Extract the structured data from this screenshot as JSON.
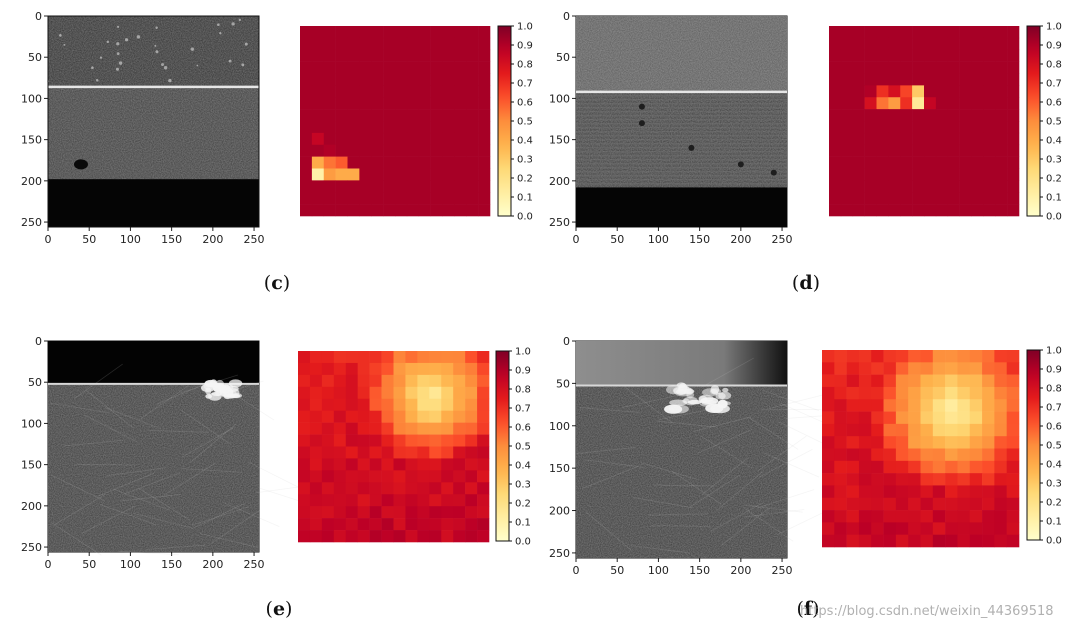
{
  "chart_data": [
    {
      "type": "heatmap",
      "panel": "c",
      "xticks": [
        "0",
        "50",
        "100",
        "150",
        "200",
        "250"
      ],
      "yticks": [
        "0",
        "50",
        "100",
        "150",
        "200",
        "250"
      ],
      "xlim": [
        0,
        256
      ],
      "ylim": [
        256,
        0
      ],
      "colorbar_ticks": [
        "0.0",
        "0.1",
        "0.2",
        "0.3",
        "0.4",
        "0.5",
        "0.6",
        "0.7",
        "0.8",
        "0.9",
        "1.0"
      ],
      "colorbar_range": [
        0.0,
        1.0
      ],
      "image": {
        "style": "xray_c",
        "seam_y": 86,
        "dark_from_y": 198,
        "defect": [
          40,
          180
        ]
      },
      "heat": {
        "grid": 16,
        "base": 0.92,
        "variation": 0.0,
        "cells": [
          [
            1,
            9,
            0.85
          ],
          [
            2,
            10,
            0.9
          ],
          [
            1,
            11,
            0.4
          ],
          [
            2,
            11,
            0.55
          ],
          [
            3,
            11,
            0.6
          ],
          [
            1,
            12,
            0.1
          ],
          [
            2,
            12,
            0.45
          ],
          [
            3,
            12,
            0.4
          ],
          [
            4,
            12,
            0.4
          ]
        ]
      }
    },
    {
      "type": "heatmap",
      "panel": "d",
      "xticks": [
        "0",
        "50",
        "100",
        "150",
        "200",
        "250"
      ],
      "yticks": [
        "0",
        "50",
        "100",
        "150",
        "200",
        "250"
      ],
      "xlim": [
        0,
        256
      ],
      "ylim": [
        256,
        0
      ],
      "colorbar_ticks": [
        "0.0",
        "0.1",
        "0.2",
        "0.3",
        "0.4",
        "0.5",
        "0.6",
        "0.7",
        "0.8",
        "0.9",
        "1.0"
      ],
      "colorbar_range": [
        0.0,
        1.0
      ],
      "image": {
        "style": "xray_d",
        "seam_y": 92,
        "dark_from_y": 208
      },
      "heat": {
        "grid": 16,
        "base": 0.92,
        "variation": 0.0,
        "cells": [
          [
            3,
            5,
            0.9
          ],
          [
            5,
            5,
            0.8
          ],
          [
            4,
            5,
            0.7
          ],
          [
            6,
            5,
            0.65
          ],
          [
            7,
            5,
            0.3
          ],
          [
            3,
            6,
            0.8
          ],
          [
            4,
            6,
            0.55
          ],
          [
            5,
            6,
            0.45
          ],
          [
            6,
            6,
            0.7
          ],
          [
            7,
            6,
            0.15
          ],
          [
            8,
            6,
            0.85
          ]
        ]
      }
    },
    {
      "type": "heatmap",
      "panel": "e",
      "xticks": [
        "0",
        "50",
        "100",
        "150",
        "200",
        "250"
      ],
      "yticks": [
        "0",
        "50",
        "100",
        "150",
        "200",
        "250"
      ],
      "xlim": [
        0,
        256
      ],
      "ylim": [
        256,
        0
      ],
      "colorbar_ticks": [
        "0.0",
        "0.1",
        "0.2",
        "0.3",
        "0.4",
        "0.5",
        "0.6",
        "0.7",
        "0.8",
        "0.9",
        "1.0"
      ],
      "colorbar_range": [
        0.0,
        1.0
      ],
      "image": {
        "style": "xray_e",
        "seam_y": 52,
        "flaw": [
          212,
          58
        ]
      },
      "heat": {
        "grid": 16,
        "base": 0.74,
        "variation": 0.05,
        "bottom_boost": 0.12,
        "blob": {
          "cx": 11.2,
          "cy": 3.8,
          "r": 3.2,
          "min": 0.12
        }
      }
    },
    {
      "type": "heatmap",
      "panel": "f",
      "xticks": [
        "0",
        "50",
        "100",
        "150",
        "200",
        "250"
      ],
      "yticks": [
        "0",
        "50",
        "100",
        "150",
        "200",
        "250"
      ],
      "xlim": [
        0,
        256
      ],
      "ylim": [
        256,
        0
      ],
      "colorbar_ticks": [
        "0.0",
        "0.1",
        "0.2",
        "0.3",
        "0.4",
        "0.5",
        "0.6",
        "0.7",
        "0.8",
        "0.9",
        "1.0"
      ],
      "colorbar_range": [
        0.0,
        1.0
      ],
      "image": {
        "style": "xray_f",
        "seam_y": 54,
        "flaw": [
          150,
          65
        ]
      },
      "heat": {
        "grid": 16,
        "base": 0.72,
        "variation": 0.05,
        "bottom_boost": 0.13,
        "blob": {
          "cx": 10.6,
          "cy": 5.0,
          "r": 3.8,
          "min": 0.1
        }
      }
    }
  ],
  "labels": {
    "c": {
      "open": "(",
      "letter": "c",
      "close": ")"
    },
    "d": {
      "open": "(",
      "letter": "d",
      "close": ")"
    },
    "e": {
      "open": "(",
      "letter": "e",
      "close": ")"
    },
    "f": {
      "open": "(",
      "letter": "f",
      "close": ")"
    }
  },
  "watermark": "https://blog.csdn.net/weixin_44369518",
  "colors": {
    "heat_top": "#9b0e24",
    "heat_mid": "#fe9a3b",
    "heat_low": "#ffffcc",
    "xray_dark": "#0a0a0a",
    "xray_mid": "#3a3a3a"
  }
}
